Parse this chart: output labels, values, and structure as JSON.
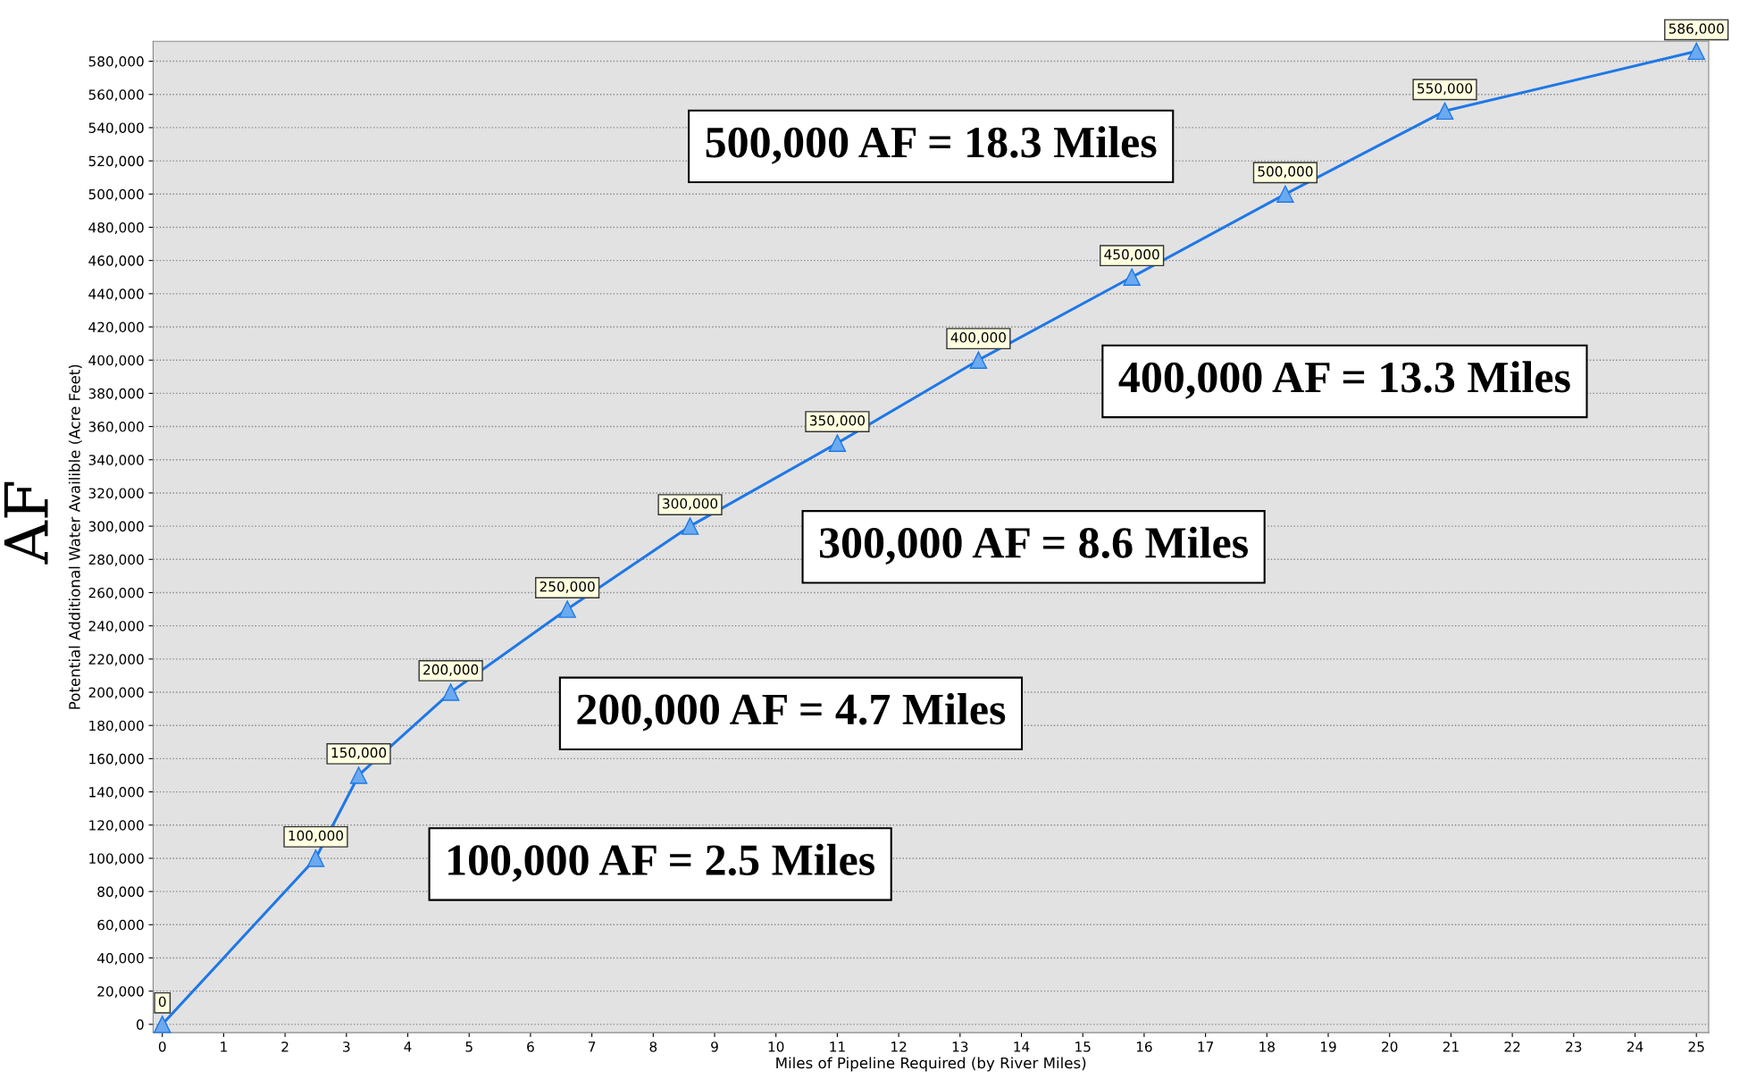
{
  "chart_data": {
    "type": "line",
    "xlabel": "Miles of Pipeline Required (by River Miles)",
    "ylabel": "Potential Additional Water Availible (Acre Feet)",
    "x": [
      0,
      2.5,
      3.2,
      4.7,
      6.6,
      8.6,
      11.0,
      13.3,
      15.8,
      18.3,
      20.9,
      25.0
    ],
    "series": [
      {
        "color": "#1f78e6",
        "values": [
          0,
          100000,
          150000,
          200000,
          250000,
          300000,
          350000,
          400000,
          450000,
          500000,
          550000,
          586000
        ],
        "value_labels": [
          "0",
          "100,000",
          "150,000",
          "200,000",
          "250,000",
          "300,000",
          "350,000",
          "400,000",
          "450,000",
          "500,000",
          "550,000",
          "586,000"
        ]
      }
    ],
    "marker": "triangle",
    "grid": "y",
    "xlim": [
      -0.15,
      25.2
    ],
    "ylim": [
      -5000,
      592000
    ],
    "xticks": [
      0,
      1,
      2,
      3,
      4,
      5,
      6,
      7,
      8,
      9,
      10,
      11,
      12,
      13,
      14,
      15,
      16,
      17,
      18,
      19,
      20,
      21,
      22,
      23,
      24,
      25
    ],
    "yticks": [
      {
        "value": 0,
        "label": "0"
      },
      {
        "value": 20000,
        "label": "20,000"
      },
      {
        "value": 40000,
        "label": "40,000"
      },
      {
        "value": 60000,
        "label": "60,000"
      },
      {
        "value": 80000,
        "label": "80,000"
      },
      {
        "value": 100000,
        "label": "100,000"
      },
      {
        "value": 120000,
        "label": "120,000"
      },
      {
        "value": 140000,
        "label": "140,000"
      },
      {
        "value": 160000,
        "label": "160,000"
      },
      {
        "value": 180000,
        "label": "180,000"
      },
      {
        "value": 200000,
        "label": "200,000"
      },
      {
        "value": 220000,
        "label": "220,000"
      },
      {
        "value": 240000,
        "label": "240,000"
      },
      {
        "value": 260000,
        "label": "260,000"
      },
      {
        "value": 280000,
        "label": "280,000"
      },
      {
        "value": 300000,
        "label": "300,000"
      },
      {
        "value": 320000,
        "label": "320,000"
      },
      {
        "value": 340000,
        "label": "340,000"
      },
      {
        "value": 360000,
        "label": "360,000"
      },
      {
        "value": 380000,
        "label": "380,000"
      },
      {
        "value": 400000,
        "label": "400,000"
      },
      {
        "value": 420000,
        "label": "420,000"
      },
      {
        "value": 440000,
        "label": "440,000"
      },
      {
        "value": 460000,
        "label": "460,000"
      },
      {
        "value": 480000,
        "label": "480,000"
      },
      {
        "value": 500000,
        "label": "500,000"
      },
      {
        "value": 520000,
        "label": "520,000"
      },
      {
        "value": 540000,
        "label": "540,000"
      },
      {
        "value": 560000,
        "label": "560,000"
      },
      {
        "value": 580000,
        "label": "580,000"
      }
    ],
    "annotations": [
      "AF",
      "500,000 AF = 18.3 Miles",
      "400,000 AF = 13.3 Miles",
      "300,000 AF = 8.6 Miles",
      "200,000 AF = 4.7 Miles",
      "100,000 AF = 2.5 Miles"
    ]
  }
}
